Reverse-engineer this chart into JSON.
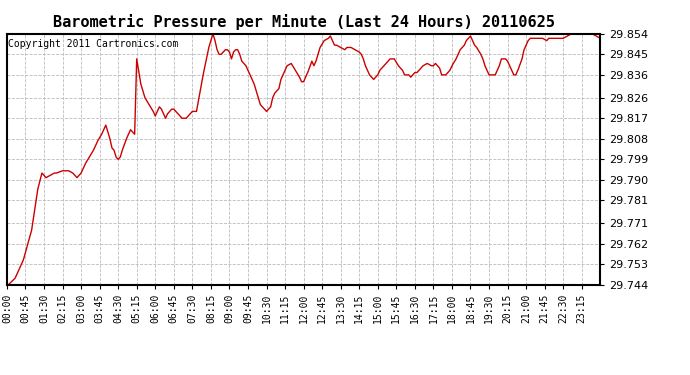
{
  "title": "Barometric Pressure per Minute (Last 24 Hours) 20110625",
  "copyright": "Copyright 2011 Cartronics.com",
  "line_color": "#cc0000",
  "background_color": "#ffffff",
  "plot_bg_color": "#ffffff",
  "grid_color": "#bbbbbb",
  "grid_style": "--",
  "yticks": [
    29.744,
    29.753,
    29.762,
    29.771,
    29.781,
    29.79,
    29.799,
    29.808,
    29.817,
    29.826,
    29.836,
    29.845,
    29.854
  ],
  "xtick_labels": [
    "00:00",
    "00:45",
    "01:30",
    "02:15",
    "03:00",
    "03:45",
    "04:30",
    "05:15",
    "06:00",
    "06:45",
    "07:30",
    "08:15",
    "09:00",
    "09:45",
    "10:30",
    "11:15",
    "12:00",
    "12:45",
    "13:30",
    "14:15",
    "15:00",
    "15:45",
    "16:30",
    "17:15",
    "18:00",
    "18:45",
    "19:30",
    "20:15",
    "21:00",
    "21:45",
    "22:30",
    "23:15"
  ],
  "ylim": [
    29.744,
    29.854
  ],
  "control_points": [
    [
      0,
      29.7435
    ],
    [
      20,
      29.747
    ],
    [
      40,
      29.755
    ],
    [
      60,
      29.768
    ],
    [
      75,
      29.786
    ],
    [
      85,
      29.793
    ],
    [
      95,
      29.791
    ],
    [
      105,
      29.792
    ],
    [
      115,
      29.793
    ],
    [
      120,
      29.793
    ],
    [
      135,
      29.794
    ],
    [
      150,
      29.794
    ],
    [
      160,
      29.793
    ],
    [
      170,
      29.791
    ],
    [
      180,
      29.793
    ],
    [
      190,
      29.797
    ],
    [
      200,
      29.8
    ],
    [
      210,
      29.803
    ],
    [
      220,
      29.807
    ],
    [
      230,
      29.81
    ],
    [
      240,
      29.814
    ],
    [
      250,
      29.808
    ],
    [
      255,
      29.804
    ],
    [
      260,
      29.803
    ],
    [
      265,
      29.8
    ],
    [
      270,
      29.799
    ],
    [
      275,
      29.8
    ],
    [
      280,
      29.803
    ],
    [
      290,
      29.808
    ],
    [
      300,
      29.812
    ],
    [
      310,
      29.81
    ],
    [
      315,
      29.843
    ],
    [
      325,
      29.832
    ],
    [
      335,
      29.826
    ],
    [
      345,
      29.823
    ],
    [
      355,
      29.82
    ],
    [
      360,
      29.818
    ],
    [
      365,
      29.82
    ],
    [
      370,
      29.822
    ],
    [
      375,
      29.821
    ],
    [
      380,
      29.819
    ],
    [
      385,
      29.817
    ],
    [
      390,
      29.819
    ],
    [
      400,
      29.821
    ],
    [
      405,
      29.821
    ],
    [
      415,
      29.819
    ],
    [
      425,
      29.817
    ],
    [
      435,
      29.817
    ],
    [
      445,
      29.819
    ],
    [
      450,
      29.82
    ],
    [
      455,
      29.82
    ],
    [
      460,
      29.82
    ],
    [
      475,
      29.835
    ],
    [
      490,
      29.848
    ],
    [
      495,
      29.851
    ],
    [
      500,
      29.854
    ],
    [
      505,
      29.851
    ],
    [
      510,
      29.847
    ],
    [
      515,
      29.845
    ],
    [
      520,
      29.845
    ],
    [
      525,
      29.846
    ],
    [
      530,
      29.847
    ],
    [
      535,
      29.847
    ],
    [
      540,
      29.846
    ],
    [
      545,
      29.843
    ],
    [
      550,
      29.846
    ],
    [
      555,
      29.847
    ],
    [
      560,
      29.847
    ],
    [
      565,
      29.845
    ],
    [
      570,
      29.842
    ],
    [
      580,
      29.84
    ],
    [
      590,
      29.836
    ],
    [
      600,
      29.832
    ],
    [
      610,
      29.826
    ],
    [
      615,
      29.823
    ],
    [
      620,
      29.822
    ],
    [
      625,
      29.821
    ],
    [
      630,
      29.82
    ],
    [
      635,
      29.821
    ],
    [
      640,
      29.822
    ],
    [
      645,
      29.826
    ],
    [
      650,
      29.828
    ],
    [
      655,
      29.829
    ],
    [
      660,
      29.83
    ],
    [
      665,
      29.834
    ],
    [
      670,
      29.836
    ],
    [
      675,
      29.838
    ],
    [
      680,
      29.84
    ],
    [
      690,
      29.841
    ],
    [
      700,
      29.838
    ],
    [
      710,
      29.835
    ],
    [
      715,
      29.833
    ],
    [
      720,
      29.833
    ],
    [
      730,
      29.837
    ],
    [
      740,
      29.842
    ],
    [
      745,
      29.84
    ],
    [
      750,
      29.842
    ],
    [
      760,
      29.848
    ],
    [
      770,
      29.851
    ],
    [
      780,
      29.852
    ],
    [
      785,
      29.853
    ],
    [
      790,
      29.851
    ],
    [
      795,
      29.849
    ],
    [
      800,
      29.849
    ],
    [
      810,
      29.848
    ],
    [
      820,
      29.847
    ],
    [
      825,
      29.848
    ],
    [
      835,
      29.848
    ],
    [
      845,
      29.847
    ],
    [
      855,
      29.846
    ],
    [
      860,
      29.845
    ],
    [
      865,
      29.843
    ],
    [
      870,
      29.84
    ],
    [
      875,
      29.838
    ],
    [
      880,
      29.836
    ],
    [
      885,
      29.835
    ],
    [
      890,
      29.834
    ],
    [
      895,
      29.835
    ],
    [
      900,
      29.836
    ],
    [
      905,
      29.838
    ],
    [
      910,
      29.839
    ],
    [
      915,
      29.84
    ],
    [
      920,
      29.841
    ],
    [
      925,
      29.842
    ],
    [
      930,
      29.843
    ],
    [
      940,
      29.843
    ],
    [
      950,
      29.84
    ],
    [
      960,
      29.838
    ],
    [
      965,
      29.836
    ],
    [
      970,
      29.836
    ],
    [
      975,
      29.836
    ],
    [
      980,
      29.835
    ],
    [
      985,
      29.836
    ],
    [
      990,
      29.837
    ],
    [
      995,
      29.837
    ],
    [
      1000,
      29.838
    ],
    [
      1010,
      29.84
    ],
    [
      1020,
      29.841
    ],
    [
      1030,
      29.84
    ],
    [
      1035,
      29.84
    ],
    [
      1040,
      29.841
    ],
    [
      1045,
      29.84
    ],
    [
      1050,
      29.839
    ],
    [
      1055,
      29.836
    ],
    [
      1060,
      29.836
    ],
    [
      1065,
      29.836
    ],
    [
      1075,
      29.838
    ],
    [
      1080,
      29.84
    ],
    [
      1090,
      29.843
    ],
    [
      1095,
      29.845
    ],
    [
      1100,
      29.847
    ],
    [
      1110,
      29.849
    ],
    [
      1115,
      29.851
    ],
    [
      1120,
      29.852
    ],
    [
      1125,
      29.853
    ],
    [
      1130,
      29.851
    ],
    [
      1135,
      29.849
    ],
    [
      1140,
      29.848
    ],
    [
      1150,
      29.845
    ],
    [
      1155,
      29.843
    ],
    [
      1160,
      29.84
    ],
    [
      1165,
      29.838
    ],
    [
      1170,
      29.836
    ],
    [
      1175,
      29.836
    ],
    [
      1180,
      29.836
    ],
    [
      1185,
      29.836
    ],
    [
      1190,
      29.838
    ],
    [
      1195,
      29.84
    ],
    [
      1200,
      29.843
    ],
    [
      1210,
      29.843
    ],
    [
      1215,
      29.842
    ],
    [
      1220,
      29.84
    ],
    [
      1225,
      29.838
    ],
    [
      1230,
      29.836
    ],
    [
      1235,
      29.836
    ],
    [
      1240,
      29.838
    ],
    [
      1250,
      29.843
    ],
    [
      1255,
      29.847
    ],
    [
      1260,
      29.849
    ],
    [
      1265,
      29.851
    ],
    [
      1270,
      29.852
    ],
    [
      1280,
      29.852
    ],
    [
      1290,
      29.852
    ],
    [
      1300,
      29.852
    ],
    [
      1310,
      29.851
    ],
    [
      1315,
      29.852
    ],
    [
      1320,
      29.852
    ],
    [
      1330,
      29.852
    ],
    [
      1340,
      29.852
    ],
    [
      1350,
      29.852
    ],
    [
      1360,
      29.853
    ],
    [
      1370,
      29.854
    ],
    [
      1380,
      29.854
    ],
    [
      1390,
      29.854
    ],
    [
      1400,
      29.854
    ],
    [
      1410,
      29.854
    ],
    [
      1420,
      29.854
    ],
    [
      1430,
      29.853
    ],
    [
      1440,
      29.852
    ]
  ]
}
